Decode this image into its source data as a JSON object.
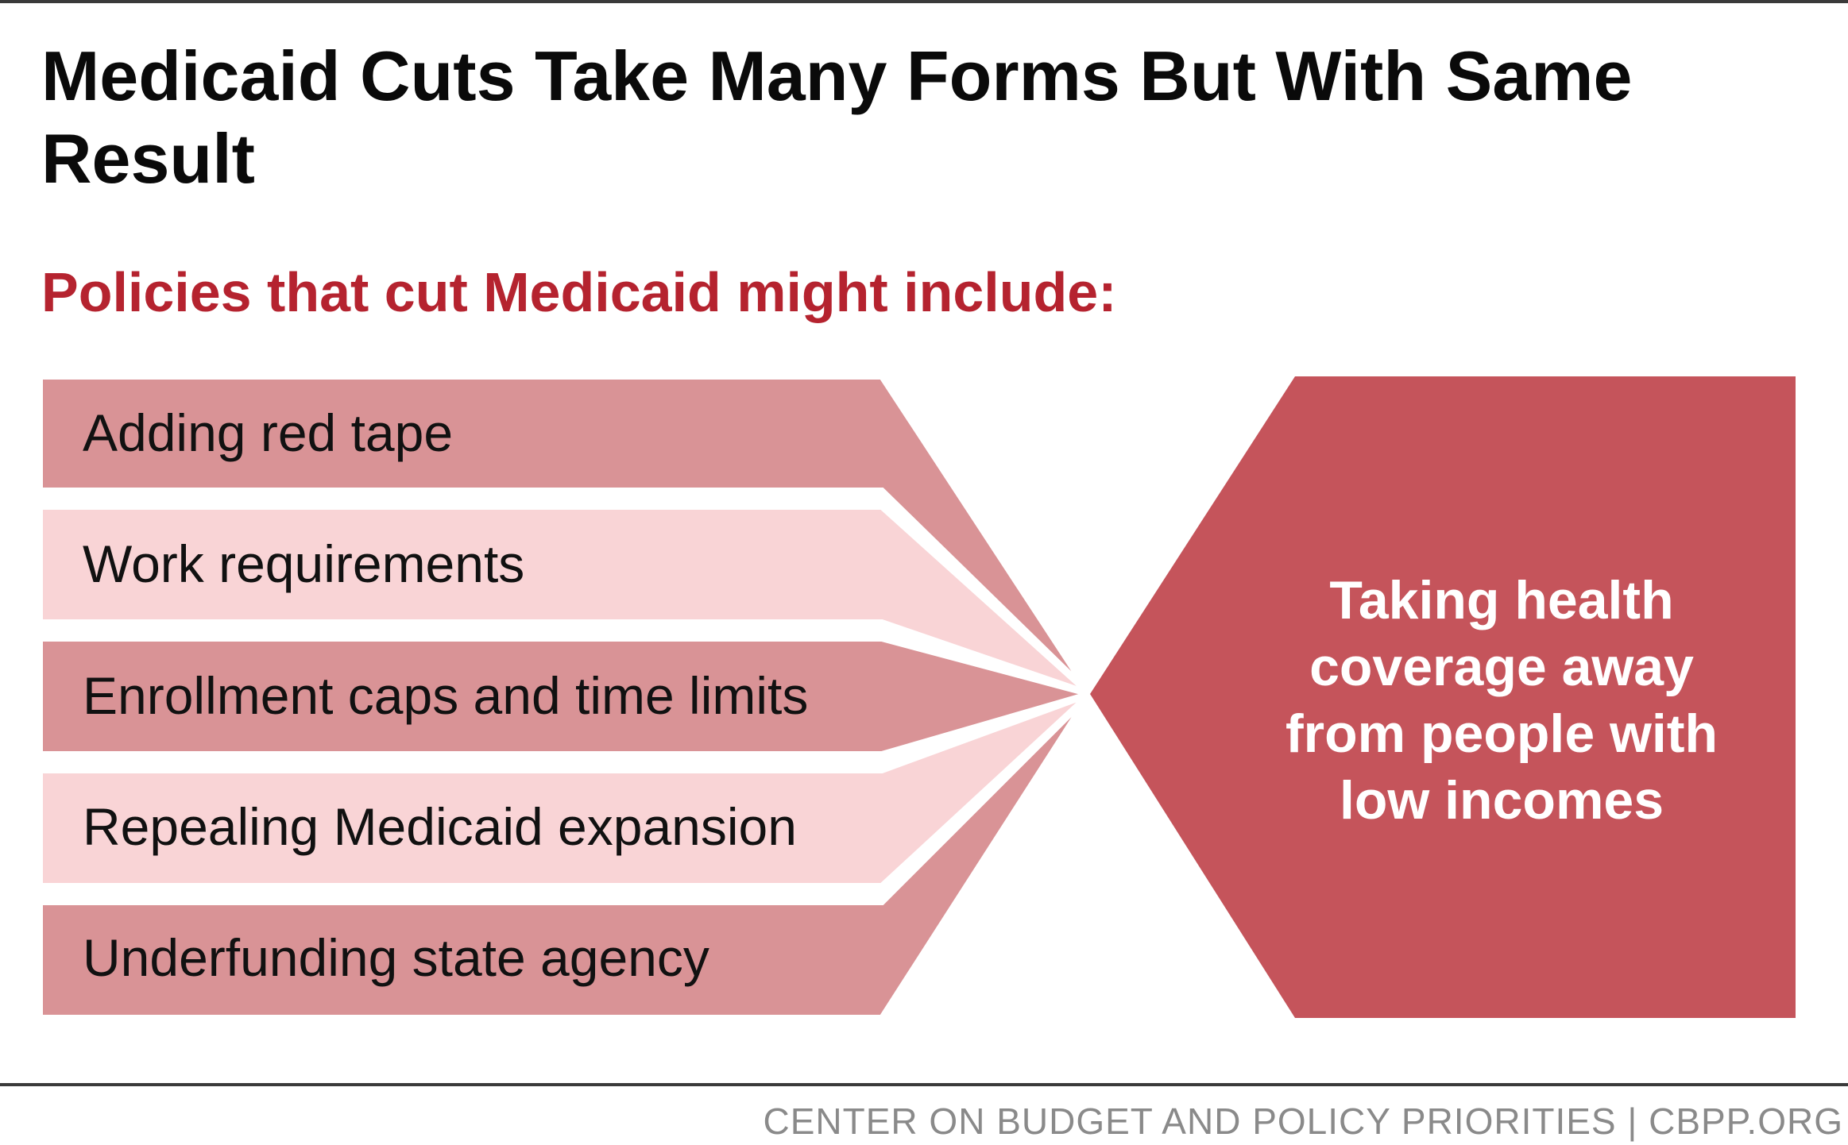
{
  "title": "Medicaid Cuts Take Many Forms But With Same Result",
  "subtitle": "Policies that cut Medicaid might include:",
  "policies": [
    "Adding red tape",
    "Work requirements",
    "Enrollment caps and time limits",
    "Repealing Medicaid expansion",
    "Underfunding state agency"
  ],
  "result": "Taking health coverage away from people with low incomes",
  "footer": "CENTER ON BUDGET AND POLICY PRIORITIES | CBPP.ORG",
  "colors": {
    "title": "#0a0a0a",
    "subtitle": "#b5232f",
    "policy_dark": "#d99396",
    "policy_light": "#f9d4d6",
    "result": "#c5545b",
    "footer": "#8a8a8a",
    "rule": "#3a3a3a"
  }
}
